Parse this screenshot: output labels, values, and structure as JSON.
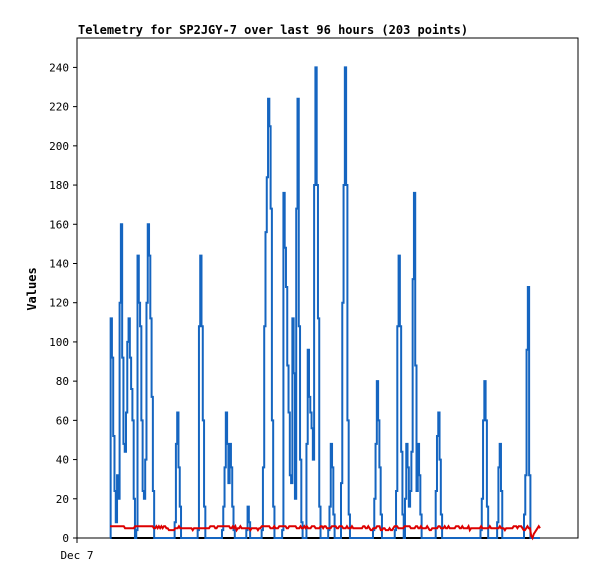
{
  "chart_data": {
    "type": "line",
    "title": "Telemetry for SP2JGY-7 over last 96 hours (203 points)",
    "xlabel": "",
    "ylabel": "Values",
    "x_tick_labels": [
      "Dec 7"
    ],
    "yticks": [
      0,
      20,
      40,
      60,
      80,
      100,
      120,
      140,
      160,
      180,
      200,
      220,
      240
    ],
    "ylim": [
      0,
      255
    ],
    "grid": false,
    "legend": "none",
    "colors": {
      "spikes": "#1565c0",
      "baseline": "#dd0000",
      "floor": "#000000"
    },
    "series": [
      {
        "values": [
          0,
          112,
          92,
          52,
          24,
          8,
          32,
          20,
          120,
          160,
          92,
          48,
          44,
          64,
          100,
          112,
          92,
          76,
          60,
          20,
          0,
          4,
          144,
          120,
          108,
          60,
          24,
          20,
          40,
          120,
          160,
          144,
          112,
          72,
          24,
          0,
          0,
          0,
          0,
          0,
          0,
          0,
          0,
          0,
          0,
          0,
          0,
          0,
          0,
          0,
          0,
          8,
          48,
          64,
          36,
          16,
          0,
          0,
          0,
          0,
          0,
          0,
          0,
          0,
          0,
          0,
          0,
          0,
          0,
          4,
          108,
          144,
          108,
          60,
          16,
          0,
          0,
          0,
          0,
          0,
          0,
          0,
          0,
          0,
          0,
          0,
          0,
          0,
          4,
          16,
          36,
          64,
          48,
          28,
          48,
          36,
          16,
          4,
          0,
          0,
          0,
          0,
          0,
          0,
          0,
          0,
          0,
          4,
          16,
          8,
          0,
          0,
          0,
          0,
          0,
          0,
          0,
          0,
          0,
          4,
          36,
          108,
          156,
          184,
          224,
          210,
          168,
          60,
          16,
          0,
          0,
          0,
          0,
          0,
          0,
          4,
          176,
          148,
          128,
          88,
          64,
          32,
          28,
          112,
          84,
          20,
          168,
          224,
          108,
          40,
          8,
          0,
          0,
          0,
          48,
          96,
          72,
          64,
          56,
          40,
          180,
          240,
          180,
          112,
          16,
          0,
          0,
          0,
          0,
          0,
          0,
          4,
          16,
          48,
          36,
          12,
          0,
          0,
          0,
          0,
          0,
          28,
          120,
          180,
          240,
          180,
          60,
          12,
          0,
          0,
          0,
          0,
          0,
          0,
          0,
          0,
          0,
          0,
          0,
          0,
          0,
          0,
          0,
          0,
          0,
          0,
          4,
          20,
          48,
          80,
          60,
          36,
          12,
          0,
          0,
          0,
          0,
          0,
          0,
          0,
          0,
          0,
          0,
          4,
          24,
          108,
          144,
          108,
          44,
          12,
          0,
          20,
          48,
          36,
          16,
          24,
          44,
          132,
          176,
          88,
          24,
          48,
          32,
          12,
          0,
          0,
          0,
          0,
          0,
          0,
          0,
          0,
          0,
          0,
          0,
          24,
          52,
          64,
          40,
          12,
          0,
          0,
          0,
          0,
          0,
          0,
          0,
          0,
          0,
          0,
          0,
          0,
          0,
          0,
          0,
          0,
          0,
          0,
          0,
          0,
          0,
          0,
          0,
          0,
          0,
          0,
          0,
          0,
          0,
          0,
          4,
          20,
          60,
          80,
          60,
          16,
          0,
          0,
          0,
          0,
          0,
          0,
          0,
          8,
          36,
          48,
          24,
          0,
          0,
          0,
          0,
          0,
          0,
          0,
          0,
          0,
          0,
          0,
          0,
          0,
          0,
          0,
          0,
          0,
          12,
          32,
          96,
          128,
          32,
          0,
          0,
          0,
          0,
          0,
          0,
          0,
          0
        ]
      },
      {
        "values": [
          6,
          6,
          6,
          6,
          6,
          6,
          6,
          6,
          6,
          6,
          6,
          6,
          5,
          5,
          5,
          5,
          5,
          5,
          5,
          5,
          6,
          6,
          6,
          6,
          6,
          6,
          6,
          6,
          6,
          6,
          6,
          6,
          6,
          6,
          6,
          5,
          5,
          6,
          5,
          6,
          5,
          6,
          5,
          6,
          6,
          5,
          5,
          4,
          4,
          4,
          4,
          4,
          5,
          5,
          5,
          6,
          5,
          5,
          5,
          5,
          5,
          5,
          5,
          5,
          5,
          5,
          4,
          5,
          5,
          5,
          5,
          5,
          5,
          5,
          5,
          5,
          5,
          5,
          5,
          5,
          6,
          6,
          6,
          6,
          5,
          5,
          6,
          6,
          6,
          6,
          6,
          6,
          6,
          6,
          6,
          6,
          5,
          5,
          6,
          5,
          6,
          4,
          5,
          5,
          6,
          5,
          5,
          5,
          5,
          5,
          5,
          5,
          4,
          5,
          5,
          5,
          5,
          5,
          4,
          5,
          5,
          6,
          6,
          6,
          6,
          6,
          6,
          6,
          5,
          5,
          5,
          6,
          5,
          5,
          5,
          6,
          6,
          6,
          6,
          6,
          6,
          5,
          5,
          6,
          6,
          6,
          6,
          6,
          6,
          5,
          5,
          5,
          6,
          5,
          5,
          6,
          5,
          6,
          5,
          5,
          5,
          6,
          6,
          6,
          5,
          5,
          5,
          5,
          6,
          6,
          5,
          6,
          6,
          5,
          5,
          5,
          5,
          6,
          6,
          6,
          6,
          5,
          5,
          6,
          6,
          6,
          5,
          5,
          5,
          6,
          5,
          5,
          5,
          6,
          5,
          5,
          5,
          5,
          5,
          5,
          5,
          5,
          6,
          6,
          5,
          5,
          6,
          5,
          4,
          4,
          5,
          5,
          5,
          6,
          6,
          6,
          4,
          4,
          5,
          5,
          4,
          4,
          4,
          5,
          4,
          4,
          5,
          6,
          6,
          6,
          5,
          5,
          5,
          5,
          5,
          6,
          6,
          6,
          6,
          6,
          5,
          5,
          5,
          5,
          6,
          6,
          5,
          5,
          6,
          5,
          5,
          5,
          5,
          6,
          5,
          4,
          4,
          5,
          5,
          5,
          5,
          5,
          6,
          6,
          5,
          5,
          5,
          6,
          5,
          5,
          6,
          5,
          5,
          5,
          5,
          5,
          6,
          6,
          6,
          5,
          5,
          6,
          5,
          5,
          5,
          5,
          6,
          4,
          5,
          5,
          5,
          5,
          5,
          5,
          5,
          5,
          6,
          5,
          5,
          5,
          5,
          5,
          5,
          6,
          5,
          5,
          5,
          5,
          5,
          5,
          5,
          6,
          5,
          5,
          5,
          4,
          5,
          5,
          5,
          5,
          5,
          5,
          6,
          6,
          6,
          5,
          6,
          6,
          6,
          5,
          4,
          4,
          5,
          6,
          5,
          5,
          1,
          0,
          2,
          3,
          4,
          5,
          6,
          5
        ]
      }
    ]
  }
}
